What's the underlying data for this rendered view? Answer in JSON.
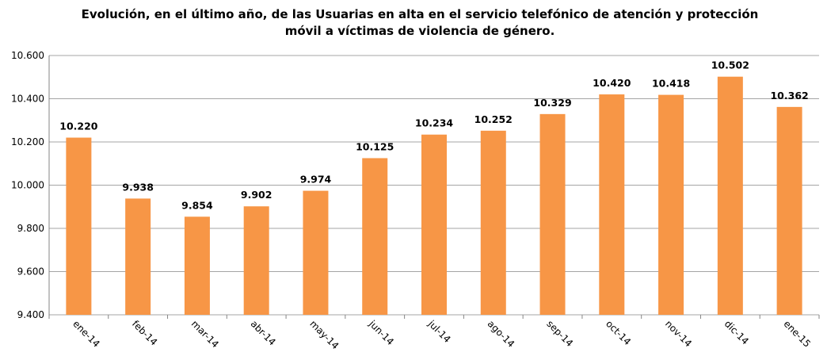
{
  "chart_data": {
    "type": "bar",
    "title": "Evolución, en el último año, de las Usuarias en alta en el servicio telefónico de atención y protección móvil a víctimas de violencia de género.",
    "categories": [
      "ene-14",
      "feb-14",
      "mar-14",
      "abr-14",
      "may-14",
      "jun-14",
      "jul-14",
      "ago-14",
      "sep-14",
      "oct-14",
      "nov-14",
      "dic-14",
      "ene-15"
    ],
    "values": [
      10220,
      9938,
      9854,
      9902,
      9974,
      10125,
      10234,
      10252,
      10329,
      10420,
      10418,
      10502,
      10362
    ],
    "value_labels": [
      "10.220",
      "9.938",
      "9.854",
      "9.902",
      "9.974",
      "10.125",
      "10.234",
      "10.252",
      "10.329",
      "10.420",
      "10.418",
      "10.502",
      "10.362"
    ],
    "color": "#f79646",
    "ylim": [
      9400,
      10600
    ],
    "yticks": [
      {
        "value": 9400,
        "label": "9.400"
      },
      {
        "value": 9600,
        "label": "9.600"
      },
      {
        "value": 9800,
        "label": "9.800"
      },
      {
        "value": 10000,
        "label": "10.000"
      },
      {
        "value": 10200,
        "label": "10.200"
      },
      {
        "value": 10400,
        "label": "10.400"
      },
      {
        "value": 10600,
        "label": "10.600"
      }
    ],
    "grid": true
  }
}
